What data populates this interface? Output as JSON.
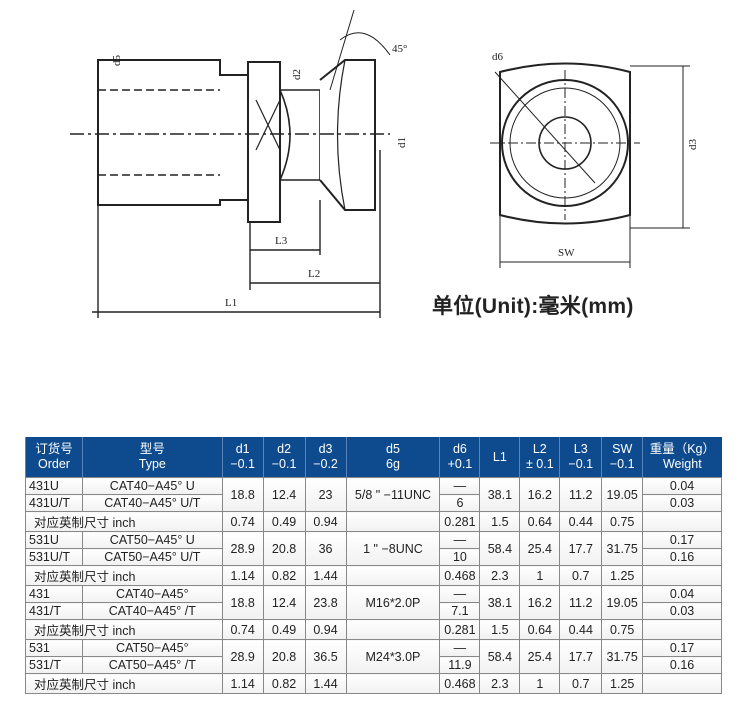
{
  "drawing": {
    "labels": {
      "d5": "d5",
      "d2": "d2",
      "d1": "d1",
      "angle": "45°",
      "L3": "L3",
      "L2": "L2",
      "L1": "L1",
      "d6": "d6",
      "d3": "d3",
      "SW": "SW"
    }
  },
  "unit_note": "单位(Unit):毫米(mm)",
  "table": {
    "headers": [
      [
        "订货号",
        "Order"
      ],
      [
        "型号",
        "Type"
      ],
      [
        "d1",
        "−0.1"
      ],
      [
        "d2",
        "−0.1"
      ],
      [
        "d3",
        "−0.2"
      ],
      [
        "d5",
        "6g"
      ],
      [
        "d6",
        "+0.1"
      ],
      [
        "L1",
        ""
      ],
      [
        "L2",
        "± 0.1"
      ],
      [
        "L3",
        "−0.1"
      ],
      [
        "SW",
        "−0.1"
      ],
      [
        "重量（Kg）",
        "Weight"
      ]
    ],
    "inch_label": "对应英制尺寸 inch",
    "groups": [
      {
        "rows": [
          {
            "order": "431U",
            "type": "CAT40−A45°  U",
            "d6": "—",
            "weight": "0.04"
          },
          {
            "order": "431U/T",
            "type": "CAT40−A45°  U/T",
            "d6": "6",
            "weight": "0.03"
          }
        ],
        "d1": "18.8",
        "d2": "12.4",
        "d3": "23",
        "d5": "5/8 \" −11UNC",
        "L1": "38.1",
        "L2": "16.2",
        "L3": "11.2",
        "SW": "19.05",
        "inch": {
          "d1": "0.74",
          "d2": "0.49",
          "d3": "0.94",
          "d6": "0.281",
          "L1": "1.5",
          "L2": "0.64",
          "L3": "0.44",
          "SW": "0.75"
        }
      },
      {
        "rows": [
          {
            "order": "531U",
            "type": "CAT50−A45°  U",
            "d6": "—",
            "weight": "0.17"
          },
          {
            "order": "531U/T",
            "type": "CAT50−A45°  U/T",
            "d6": "10",
            "weight": "0.16"
          }
        ],
        "d1": "28.9",
        "d2": "20.8",
        "d3": "36",
        "d5": "1 \" −8UNC",
        "L1": "58.4",
        "L2": "25.4",
        "L3": "17.7",
        "SW": "31.75",
        "inch": {
          "d1": "1.14",
          "d2": "0.82",
          "d3": "1.44",
          "d6": "0.468",
          "L1": "2.3",
          "L2": "1",
          "L3": "0.7",
          "SW": "1.25"
        }
      },
      {
        "rows": [
          {
            "order": "431",
            "type": "CAT40−A45°",
            "d6": "—",
            "weight": "0.04"
          },
          {
            "order": "431/T",
            "type": "CAT40−A45°  /T",
            "d6": "7.1",
            "weight": "0.03"
          }
        ],
        "d1": "18.8",
        "d2": "12.4",
        "d3": "23.8",
        "d5": "M16*2.0P",
        "L1": "38.1",
        "L2": "16.2",
        "L3": "11.2",
        "SW": "19.05",
        "inch": {
          "d1": "0.74",
          "d2": "0.49",
          "d3": "0.94",
          "d6": "0.281",
          "L1": "1.5",
          "L2": "0.64",
          "L3": "0.44",
          "SW": "0.75"
        }
      },
      {
        "rows": [
          {
            "order": "531",
            "type": "CAT50−A45°",
            "d6": "—",
            "weight": "0.17"
          },
          {
            "order": "531/T",
            "type": "CAT50−A45°  /T",
            "d6": "11.9",
            "weight": "0.16"
          }
        ],
        "d1": "28.9",
        "d2": "20.8",
        "d3": "36.5",
        "d5": "M24*3.0P",
        "L1": "58.4",
        "L2": "25.4",
        "L3": "17.7",
        "SW": "31.75",
        "inch": {
          "d1": "1.14",
          "d2": "0.82",
          "d3": "1.44",
          "d6": "0.468",
          "L1": "2.3",
          "L2": "1",
          "L3": "0.7",
          "SW": "1.25"
        }
      }
    ]
  }
}
